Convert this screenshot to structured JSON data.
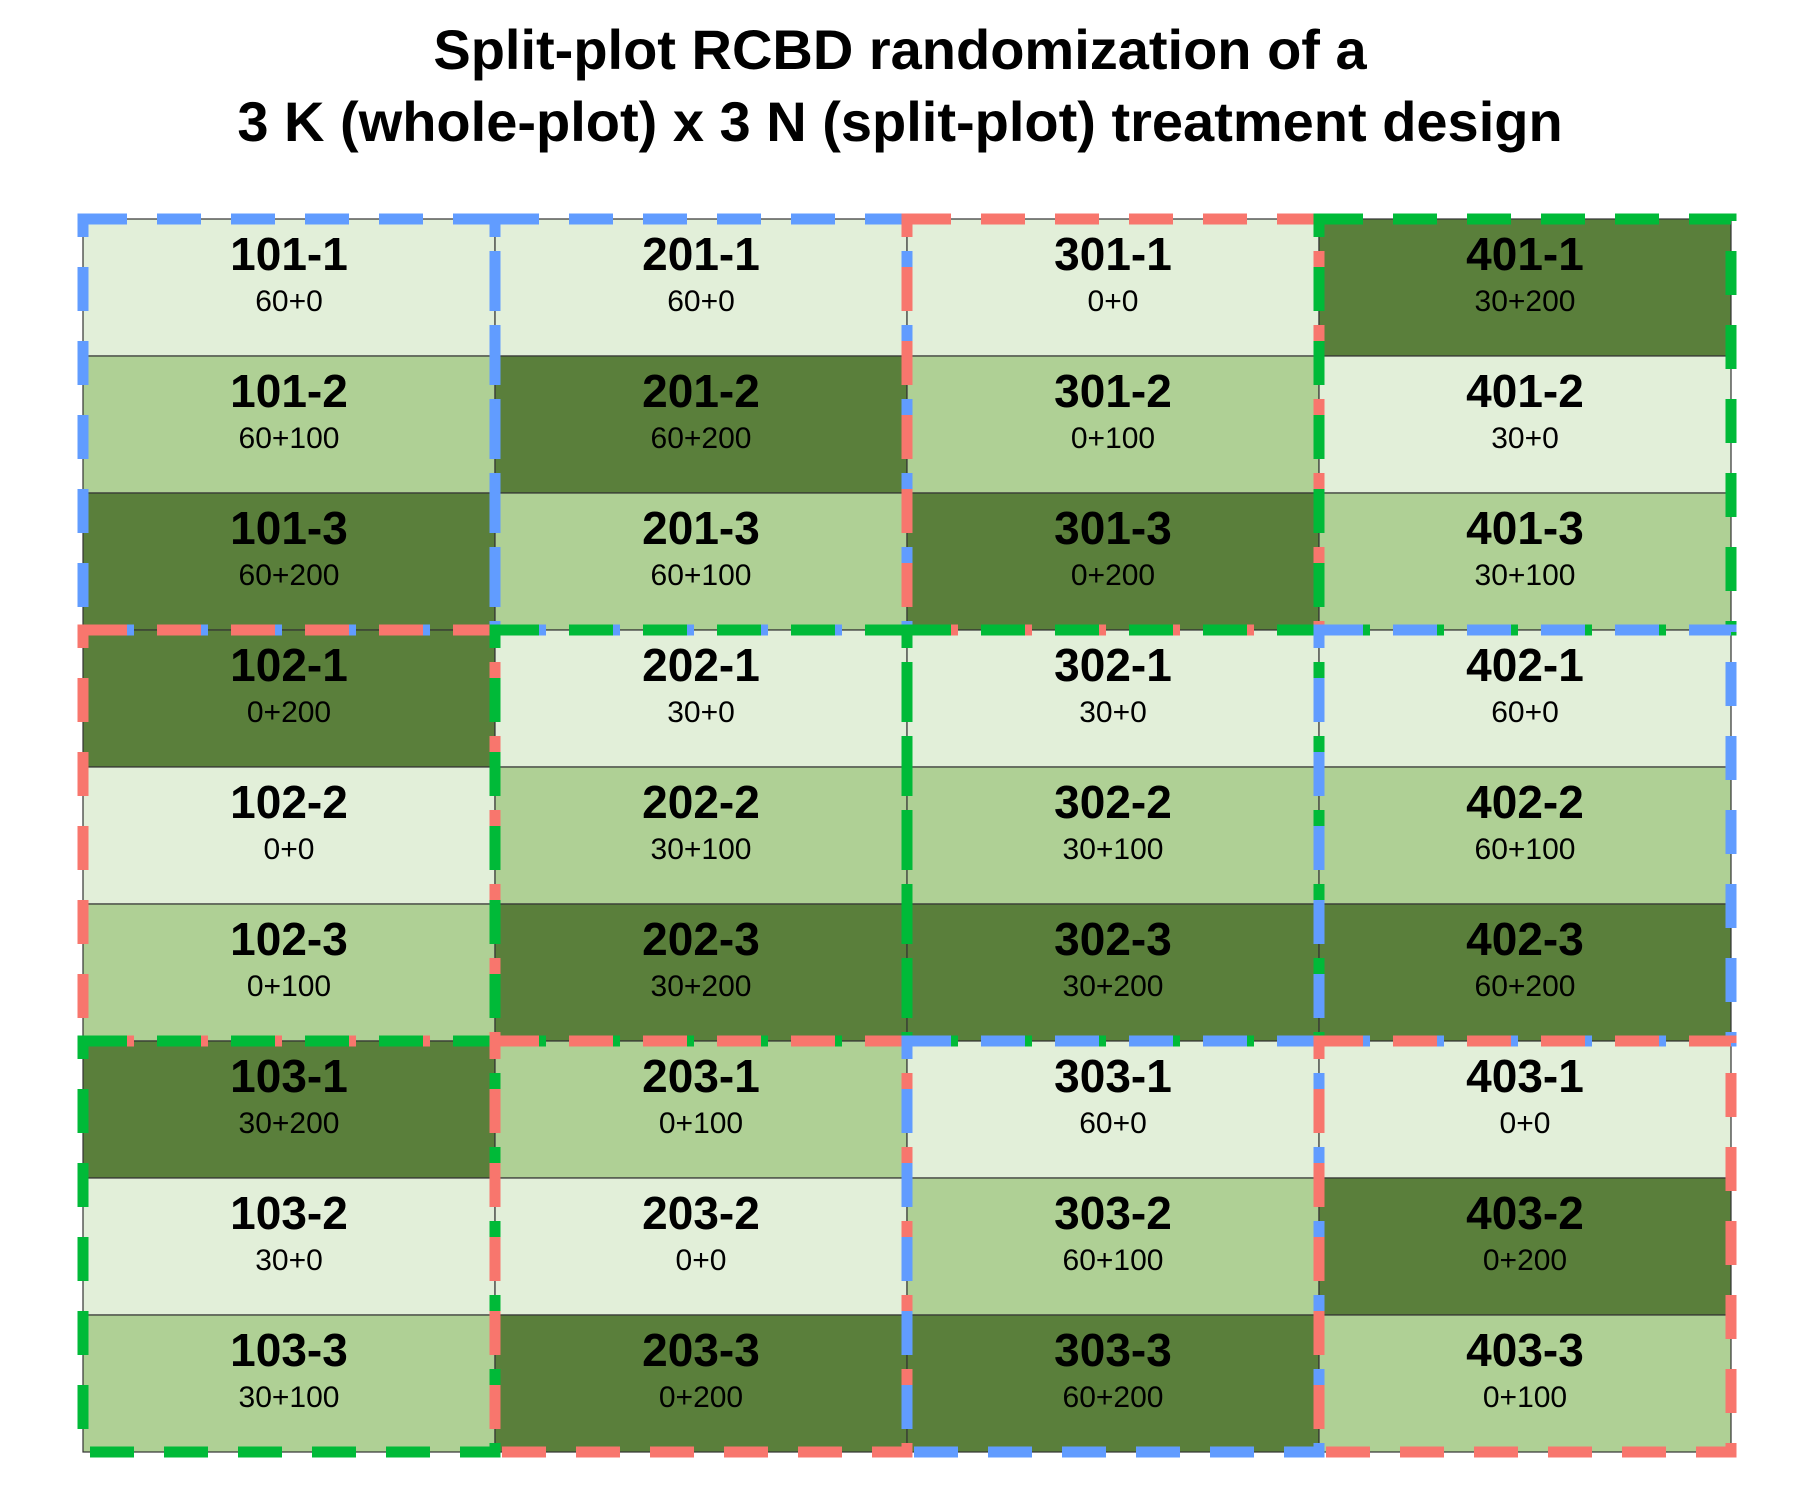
{
  "title": {
    "line1": "Split-plot RCBD randomization of a",
    "line2": "3 K (whole-plot) x 3 N (split-plot) treatment design"
  },
  "colors": {
    "n_levels": {
      "0": "#e2efd9",
      "100": "#afd095",
      "200": "#5a7f3b"
    },
    "k_borders": {
      "0": "#f8766d",
      "30": "#00ba38",
      "60": "#619cff"
    },
    "cell_outline": "#333333"
  },
  "grid": {
    "columns": 4,
    "rows": 9
  },
  "columns": [
    {
      "whole_plots": [
        {
          "k": "60",
          "cells": [
            {
              "id": "101-1",
              "trt": "60+0",
              "n": "0"
            },
            {
              "id": "101-2",
              "trt": "60+100",
              "n": "100"
            },
            {
              "id": "101-3",
              "trt": "60+200",
              "n": "200"
            }
          ]
        },
        {
          "k": "0",
          "cells": [
            {
              "id": "102-1",
              "trt": "0+200",
              "n": "200"
            },
            {
              "id": "102-2",
              "trt": "0+0",
              "n": "0"
            },
            {
              "id": "102-3",
              "trt": "0+100",
              "n": "100"
            }
          ]
        },
        {
          "k": "30",
          "cells": [
            {
              "id": "103-1",
              "trt": "30+200",
              "n": "200"
            },
            {
              "id": "103-2",
              "trt": "30+0",
              "n": "0"
            },
            {
              "id": "103-3",
              "trt": "30+100",
              "n": "100"
            }
          ]
        }
      ]
    },
    {
      "whole_plots": [
        {
          "k": "60",
          "cells": [
            {
              "id": "201-1",
              "trt": "60+0",
              "n": "0"
            },
            {
              "id": "201-2",
              "trt": "60+200",
              "n": "200"
            },
            {
              "id": "201-3",
              "trt": "60+100",
              "n": "100"
            }
          ]
        },
        {
          "k": "30",
          "cells": [
            {
              "id": "202-1",
              "trt": "30+0",
              "n": "0"
            },
            {
              "id": "202-2",
              "trt": "30+100",
              "n": "100"
            },
            {
              "id": "202-3",
              "trt": "30+200",
              "n": "200"
            }
          ]
        },
        {
          "k": "0",
          "cells": [
            {
              "id": "203-1",
              "trt": "0+100",
              "n": "100"
            },
            {
              "id": "203-2",
              "trt": "0+0",
              "n": "0"
            },
            {
              "id": "203-3",
              "trt": "0+200",
              "n": "200"
            }
          ]
        }
      ]
    },
    {
      "whole_plots": [
        {
          "k": "0",
          "cells": [
            {
              "id": "301-1",
              "trt": "0+0",
              "n": "0"
            },
            {
              "id": "301-2",
              "trt": "0+100",
              "n": "100"
            },
            {
              "id": "301-3",
              "trt": "0+200",
              "n": "200"
            }
          ]
        },
        {
          "k": "30",
          "cells": [
            {
              "id": "302-1",
              "trt": "30+0",
              "n": "0"
            },
            {
              "id": "302-2",
              "trt": "30+100",
              "n": "100"
            },
            {
              "id": "302-3",
              "trt": "30+200",
              "n": "200"
            }
          ]
        },
        {
          "k": "60",
          "cells": [
            {
              "id": "303-1",
              "trt": "60+0",
              "n": "0"
            },
            {
              "id": "303-2",
              "trt": "60+100",
              "n": "100"
            },
            {
              "id": "303-3",
              "trt": "60+200",
              "n": "200"
            }
          ]
        }
      ]
    },
    {
      "whole_plots": [
        {
          "k": "30",
          "cells": [
            {
              "id": "401-1",
              "trt": "30+200",
              "n": "200"
            },
            {
              "id": "401-2",
              "trt": "30+0",
              "n": "0"
            },
            {
              "id": "401-3",
              "trt": "30+100",
              "n": "100"
            }
          ]
        },
        {
          "k": "60",
          "cells": [
            {
              "id": "402-1",
              "trt": "60+0",
              "n": "0"
            },
            {
              "id": "402-2",
              "trt": "60+100",
              "n": "100"
            },
            {
              "id": "402-3",
              "trt": "60+200",
              "n": "200"
            }
          ]
        },
        {
          "k": "0",
          "cells": [
            {
              "id": "403-1",
              "trt": "0+0",
              "n": "0"
            },
            {
              "id": "403-2",
              "trt": "0+200",
              "n": "200"
            },
            {
              "id": "403-3",
              "trt": "0+100",
              "n": "100"
            }
          ]
        }
      ]
    }
  ]
}
